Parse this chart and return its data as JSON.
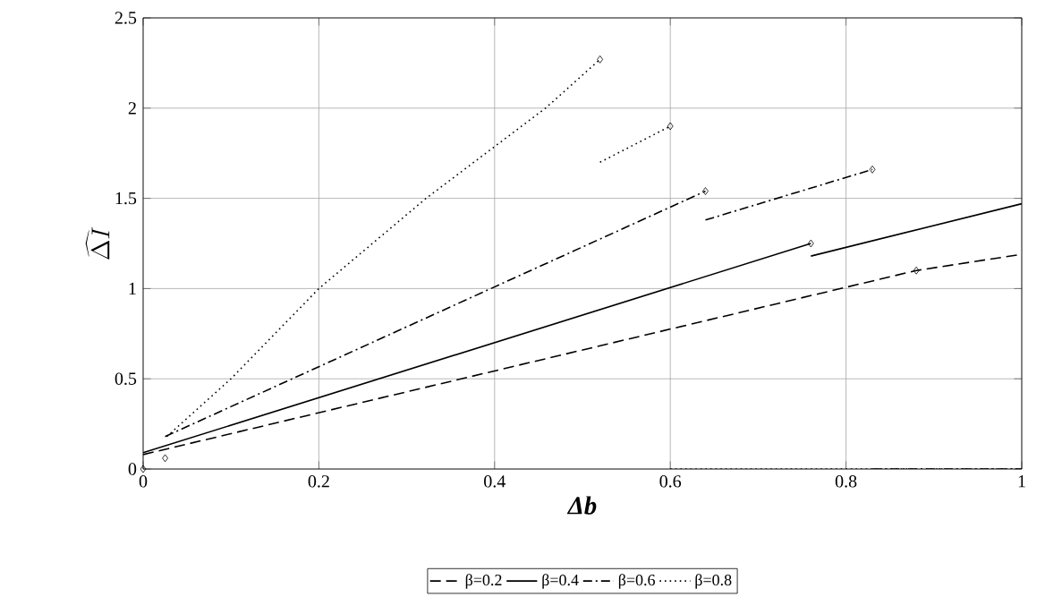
{
  "chart_data": {
    "type": "line",
    "xlabel": "Δb",
    "ylabel": "\\widehat{\\Delta I}",
    "xlim": [
      0,
      1
    ],
    "ylim": [
      0,
      2.5
    ],
    "xticks": [
      0,
      0.2,
      0.4,
      0.6,
      0.8,
      1
    ],
    "yticks": [
      0,
      0.5,
      1,
      1.5,
      2,
      2.5
    ],
    "grid": true,
    "legend": "bottom",
    "marker": "none",
    "series": [
      {
        "name": "β=0.2",
        "color": "#000000",
        "line_style": "dashed",
        "x": [
          0,
          0.88,
          1
        ],
        "values": [
          0.08,
          1.1,
          1.19
        ]
      },
      {
        "name": "β=0.4",
        "color": "#000000",
        "line_style": "solid",
        "x": [
          0,
          0.76,
          null,
          0.76,
          1
        ],
        "values": [
          0.09,
          1.25,
          null,
          1.18,
          1.47
        ]
      },
      {
        "name": "β=0.6",
        "color": "#000000",
        "line_style": "dashdotted",
        "x": [
          0.025,
          0.64,
          null,
          0.64,
          0.83,
          null,
          0.83,
          1
        ],
        "values": [
          0.18,
          1.54,
          null,
          1.38,
          1.66,
          null,
          0,
          0
        ]
      },
      {
        "name": "β=0.8",
        "color": "#000000",
        "line_style": "dotted",
        "x": [
          0.027,
          0.1,
          0.2,
          0.322,
          0.458,
          0.52,
          null,
          0.52,
          0.6,
          null,
          0.6,
          1
        ],
        "values": [
          0.18,
          0.5,
          1.0,
          1.5,
          2.0,
          2.27,
          null,
          1.7,
          1.9,
          null,
          0,
          0
        ]
      },
      {
        "type": "scatter",
        "marker": "diamond",
        "color": "#000000",
        "x": [
          0,
          0.025,
          0.52,
          0.6,
          0.64,
          0.83,
          0.76,
          0.88
        ],
        "values": [
          0,
          0.06,
          2.27,
          1.9,
          1.54,
          1.66,
          1.25,
          1.1
        ]
      }
    ]
  }
}
